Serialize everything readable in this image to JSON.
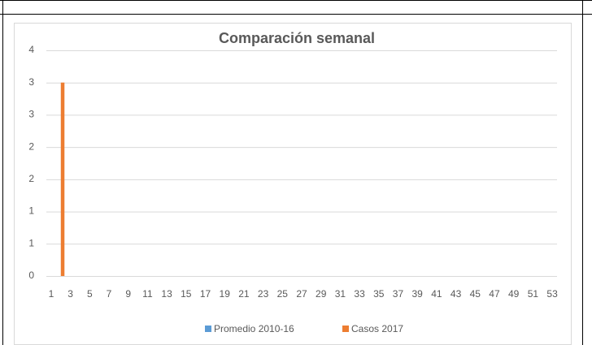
{
  "chart_data": {
    "type": "bar",
    "title": "Comparación semanal",
    "categories": [
      1,
      null,
      3,
      null,
      5,
      null,
      7,
      null,
      9,
      null,
      11,
      null,
      13,
      null,
      15,
      null,
      17,
      null,
      19,
      null,
      21,
      null,
      23,
      null,
      25,
      null,
      27,
      null,
      29,
      null,
      31,
      null,
      33,
      null,
      35,
      null,
      37,
      null,
      39,
      null,
      41,
      null,
      43,
      null,
      45,
      null,
      47,
      null,
      49,
      null,
      51,
      null,
      53
    ],
    "series": [
      {
        "name": "Promedio 2010-16",
        "color": "#5b9bd5",
        "values": [
          0,
          0,
          0,
          0,
          0,
          0,
          0,
          0,
          0,
          0,
          0,
          0,
          0,
          0,
          0,
          0,
          0,
          0,
          0,
          0,
          0,
          0,
          0,
          0,
          0,
          0,
          0,
          0,
          0,
          0,
          0,
          0,
          0,
          0,
          0,
          0,
          0,
          0,
          0,
          0,
          0,
          0,
          0,
          0,
          0,
          0,
          0,
          0,
          0,
          0,
          0,
          0,
          0
        ]
      },
      {
        "name": "Casos 2017",
        "color": "#ed7d31",
        "values": [
          0,
          3,
          0,
          0,
          0,
          0,
          0,
          0,
          0,
          0,
          0,
          0,
          0,
          0,
          0,
          0,
          0,
          0,
          0,
          0,
          0,
          0,
          0,
          0,
          0,
          0,
          0,
          0,
          0,
          0,
          0,
          0,
          0,
          0,
          0,
          0,
          0,
          0,
          0,
          0,
          0,
          0,
          0,
          0,
          0,
          0,
          0,
          0,
          0,
          0,
          0,
          0,
          0
        ]
      }
    ],
    "ylim": [
      0,
      3.5
    ],
    "yticks": [
      0,
      {
        "value": 0.5,
        "label": "1"
      },
      1,
      {
        "value": 1.5,
        "label": "2"
      },
      2,
      {
        "value": 2.5,
        "label": "3"
      },
      3,
      {
        "value": 3.5,
        "label": "4"
      }
    ],
    "grid": true,
    "legend": "bottom"
  }
}
